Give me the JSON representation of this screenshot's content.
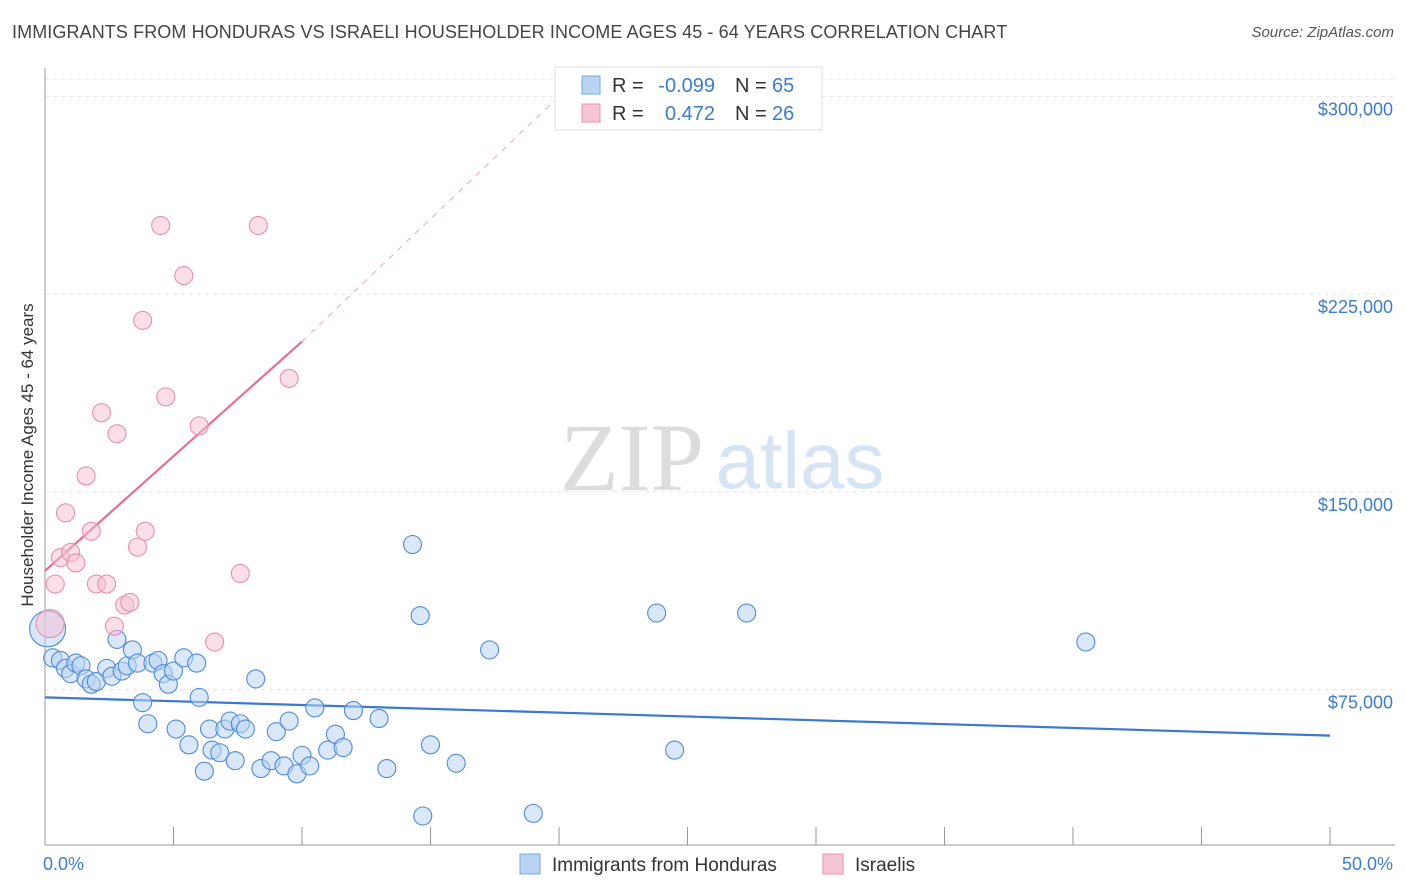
{
  "title": "IMMIGRANTS FROM HONDURAS VS ISRAELI HOUSEHOLDER INCOME AGES 45 - 64 YEARS CORRELATION CHART",
  "source": "Source: ZipAtlas.com",
  "watermark": {
    "zip": "ZIP",
    "atlas": "atlas"
  },
  "colors": {
    "blue": "#3b78cf",
    "blue_fill": "#b9d3f2",
    "pink": "#e46d96",
    "pink_fill": "#f6bfd2",
    "tick": "#3d7cc9"
  },
  "legend": {
    "r_label": "R =",
    "n_label": "N =",
    "rows": [
      {
        "r": "-0.099",
        "n": "65"
      },
      {
        "r": "0.472",
        "n": "26"
      }
    ]
  },
  "bottom_legend": [
    "Immigrants from Honduras",
    "Israelis"
  ],
  "chart_data": {
    "type": "scatter",
    "title": "IMMIGRANTS FROM HONDURAS VS ISRAELI HOUSEHOLDER INCOME AGES 45 - 64 YEARS CORRELATION CHART",
    "xlabel": "",
    "ylabel": "Householder Income Ages 45 - 64 years",
    "xlim": [
      0,
      50
    ],
    "ylim": [
      16000,
      310000
    ],
    "x_tick_labels": [
      "0.0%",
      "50.0%"
    ],
    "y_ticks": [
      75000,
      150000,
      225000,
      300000
    ],
    "y_tick_labels": [
      "$75,000",
      "$150,000",
      "$225,000",
      "$300,000"
    ],
    "grid": true,
    "series": [
      {
        "name": "Immigrants from Honduras",
        "r": -0.099,
        "n": 65,
        "trend": {
          "x": [
            0,
            50
          ],
          "y": [
            72000,
            57500
          ]
        },
        "points": [
          [
            0.1,
            98000
          ],
          [
            0.3,
            87000
          ],
          [
            0.6,
            86000
          ],
          [
            0.8,
            83000
          ],
          [
            1.0,
            81000
          ],
          [
            1.2,
            85000
          ],
          [
            1.4,
            84000
          ],
          [
            1.6,
            79000
          ],
          [
            1.8,
            77000
          ],
          [
            2.0,
            78000
          ],
          [
            2.4,
            83000
          ],
          [
            2.6,
            80000
          ],
          [
            2.8,
            94000
          ],
          [
            3.0,
            82000
          ],
          [
            3.2,
            84000
          ],
          [
            3.4,
            90000
          ],
          [
            3.6,
            85000
          ],
          [
            3.8,
            70000
          ],
          [
            4.0,
            62000
          ],
          [
            4.2,
            85000
          ],
          [
            4.4,
            86000
          ],
          [
            4.6,
            81000
          ],
          [
            4.8,
            77000
          ],
          [
            5.0,
            82000
          ],
          [
            5.1,
            60000
          ],
          [
            5.4,
            87000
          ],
          [
            5.6,
            54000
          ],
          [
            5.9,
            85000
          ],
          [
            6.0,
            72000
          ],
          [
            6.2,
            44000
          ],
          [
            6.4,
            60000
          ],
          [
            6.5,
            52000
          ],
          [
            6.8,
            51000
          ],
          [
            7.0,
            60000
          ],
          [
            7.2,
            63000
          ],
          [
            7.4,
            48000
          ],
          [
            7.6,
            62000
          ],
          [
            7.8,
            60000
          ],
          [
            8.2,
            79000
          ],
          [
            8.4,
            45000
          ],
          [
            8.8,
            48000
          ],
          [
            9.0,
            59000
          ],
          [
            9.3,
            46000
          ],
          [
            9.5,
            63000
          ],
          [
            9.8,
            43000
          ],
          [
            10.0,
            50000
          ],
          [
            10.3,
            46000
          ],
          [
            10.5,
            68000
          ],
          [
            11.0,
            52000
          ],
          [
            11.3,
            58000
          ],
          [
            11.6,
            53000
          ],
          [
            12.0,
            67000
          ],
          [
            13.0,
            64000
          ],
          [
            13.3,
            45000
          ],
          [
            14.3,
            130000
          ],
          [
            14.6,
            103000
          ],
          [
            14.7,
            27000
          ],
          [
            15.0,
            54000
          ],
          [
            16.0,
            47000
          ],
          [
            17.3,
            90000
          ],
          [
            19.0,
            28000
          ],
          [
            23.8,
            104000
          ],
          [
            24.5,
            52000
          ],
          [
            27.3,
            104000
          ],
          [
            40.5,
            93000
          ]
        ]
      },
      {
        "name": "Israelis",
        "r": 0.472,
        "n": 26,
        "trend": {
          "x": [
            0,
            10
          ],
          "y": [
            120000,
            207000
          ]
        },
        "trend_ext": {
          "x": [
            10,
            20
          ],
          "y": [
            207000,
            300000
          ]
        },
        "points": [
          [
            0.2,
            100000
          ],
          [
            0.4,
            115000
          ],
          [
            0.6,
            125000
          ],
          [
            0.8,
            142000
          ],
          [
            1.0,
            127000
          ],
          [
            1.2,
            123000
          ],
          [
            1.6,
            156000
          ],
          [
            1.8,
            135000
          ],
          [
            2.0,
            115000
          ],
          [
            2.2,
            180000
          ],
          [
            2.4,
            115000
          ],
          [
            2.7,
            99000
          ],
          [
            2.8,
            172000
          ],
          [
            3.1,
            107000
          ],
          [
            3.3,
            108000
          ],
          [
            3.6,
            129000
          ],
          [
            3.8,
            215000
          ],
          [
            3.9,
            135000
          ],
          [
            4.5,
            251000
          ],
          [
            4.7,
            186000
          ],
          [
            5.4,
            232000
          ],
          [
            6.0,
            175000
          ],
          [
            6.6,
            93000
          ],
          [
            7.6,
            119000
          ],
          [
            8.3,
            251000
          ],
          [
            9.5,
            193000
          ]
        ]
      }
    ]
  }
}
